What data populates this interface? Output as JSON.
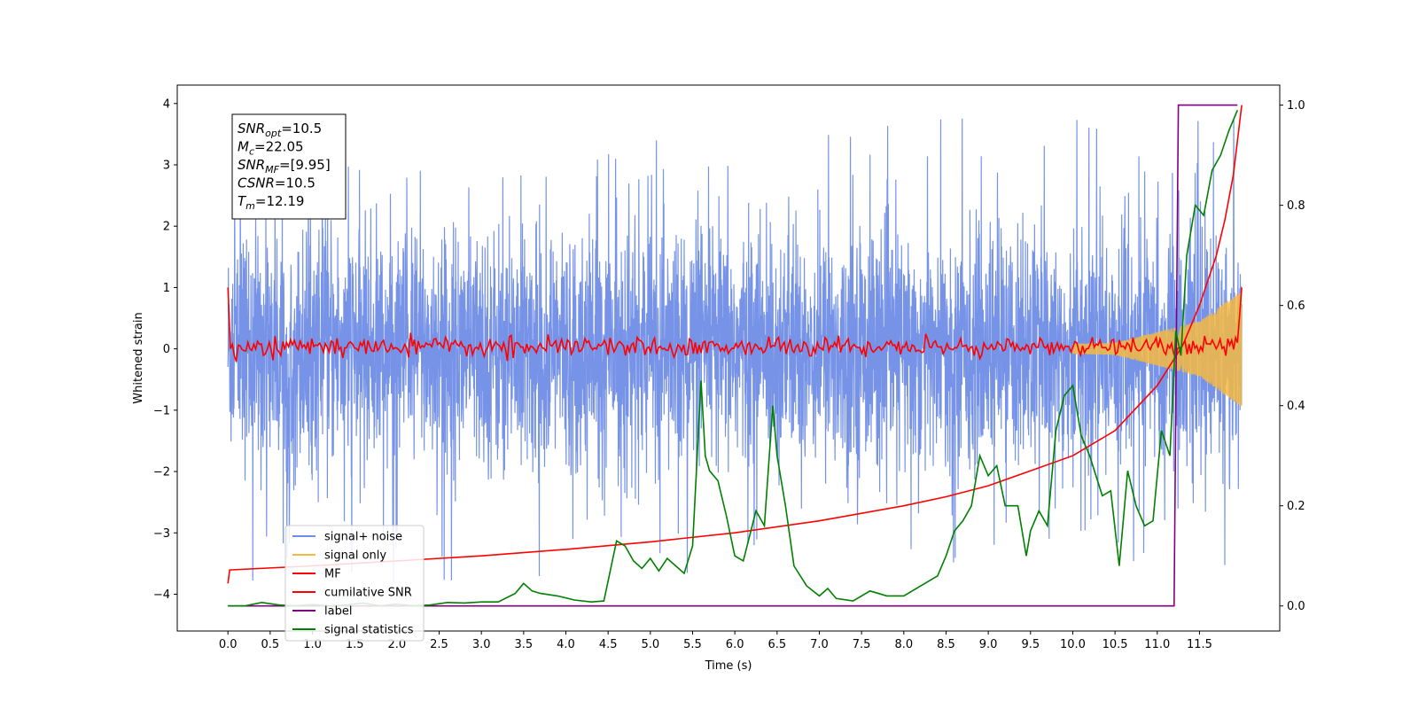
{
  "chart_data": {
    "type": "line",
    "xlabel": "Time (s)",
    "ylabel": "Whitened strain",
    "xlim": [
      -0.6,
      12.45
    ],
    "ylim": [
      -4.6,
      4.3
    ],
    "y2lim": [
      -0.05,
      1.04
    ],
    "xticks": [
      "0.0",
      "0.5",
      "1.0",
      "1.5",
      "2.0",
      "2.5",
      "3.0",
      "3.5",
      "4.0",
      "4.5",
      "5.0",
      "5.5",
      "6.0",
      "6.5",
      "7.0",
      "7.5",
      "8.0",
      "8.5",
      "9.0",
      "9.5",
      "10.0",
      "10.5",
      "11.0",
      "11.5"
    ],
    "yticks": [
      "4",
      "3",
      "2",
      "1",
      "0",
      "−1",
      "−2",
      "−3",
      "−4"
    ],
    "y2ticks": [
      "1.0",
      "0.8",
      "0.6",
      "0.4",
      "0.2",
      "0.0"
    ],
    "legend_placement": "lower-left",
    "annotation": {
      "lines": [
        {
          "base": "SNR",
          "sub": "opt",
          "rest": "=10.5"
        },
        {
          "base": "M",
          "sub": "c",
          "rest": "=22.05"
        },
        {
          "base": "SNR",
          "sub": "MF",
          "rest": "=[9.95]"
        },
        {
          "base": "CSNR",
          "sub": "",
          "rest": "=10.5"
        },
        {
          "base": "T",
          "sub": "m",
          "rest": "=12.19"
        }
      ]
    },
    "series": [
      {
        "name": "signal+ noise",
        "color": "#6f8de6",
        "axis": "left",
        "kind": "noise",
        "envelope": [
          -2.0,
          2.0
        ],
        "peaks_max": 3.9,
        "peaks_min": -4.0
      },
      {
        "name": "signal only",
        "color": "#f5b942",
        "axis": "left",
        "kind": "chirp",
        "x": [
          0.0,
          9.0,
          10.5,
          11.5,
          12.0
        ],
        "amplitude": [
          0.02,
          0.05,
          0.1,
          0.45,
          0.95
        ]
      },
      {
        "name": "MF",
        "color": "#ff0000",
        "axis": "left",
        "kind": "mf",
        "x": [
          0.0,
          0.03,
          0.1,
          11.95,
          12.0
        ],
        "y": [
          1.0,
          0.0,
          0.05,
          0.1,
          1.0
        ]
      },
      {
        "name": "cumilative SNR",
        "color": "#ff0000",
        "axis": "right",
        "kind": "line",
        "x": [
          0.0,
          0.02,
          1.0,
          2.0,
          3.0,
          4.0,
          5.0,
          6.0,
          7.0,
          7.5,
          8.0,
          8.5,
          9.0,
          9.5,
          10.0,
          10.5,
          11.0,
          11.3,
          11.5,
          11.7,
          11.8,
          11.9,
          12.0
        ],
        "y": [
          0.045,
          0.072,
          0.08,
          0.09,
          0.1,
          0.113,
          0.128,
          0.146,
          0.17,
          0.185,
          0.2,
          0.218,
          0.24,
          0.27,
          0.3,
          0.35,
          0.44,
          0.52,
          0.6,
          0.7,
          0.77,
          0.86,
          1.0
        ]
      },
      {
        "name": "label",
        "color": "#800080",
        "axis": "right",
        "kind": "line",
        "x": [
          0.0,
          11.2,
          11.25,
          11.95
        ],
        "y": [
          0.0,
          0.0,
          1.0,
          1.0
        ]
      },
      {
        "name": "signal statistics",
        "color": "#008000",
        "axis": "right",
        "kind": "line",
        "x": [
          0.0,
          0.2,
          0.4,
          0.6,
          0.8,
          1.0,
          1.2,
          1.4,
          1.6,
          1.8,
          2.0,
          2.2,
          2.4,
          2.6,
          2.8,
          3.0,
          3.2,
          3.4,
          3.5,
          3.6,
          3.7,
          3.9,
          4.1,
          4.3,
          4.45,
          4.6,
          4.7,
          4.8,
          4.9,
          5.0,
          5.1,
          5.2,
          5.3,
          5.4,
          5.5,
          5.6,
          5.65,
          5.7,
          5.8,
          5.9,
          6.0,
          6.1,
          6.25,
          6.35,
          6.45,
          6.5,
          6.6,
          6.7,
          6.85,
          7.0,
          7.1,
          7.2,
          7.4,
          7.6,
          7.8,
          8.0,
          8.2,
          8.4,
          8.5,
          8.6,
          8.7,
          8.8,
          8.9,
          9.0,
          9.1,
          9.2,
          9.35,
          9.45,
          9.5,
          9.6,
          9.7,
          9.8,
          9.9,
          10.0,
          10.1,
          10.2,
          10.35,
          10.45,
          10.55,
          10.65,
          10.75,
          10.85,
          10.95,
          11.05,
          11.15,
          11.22,
          11.28,
          11.35,
          11.45,
          11.55,
          11.65,
          11.75,
          11.85,
          11.95
        ],
        "y": [
          0.0,
          0.0,
          0.007,
          0.002,
          0.0,
          0.003,
          0.0,
          0.002,
          0.006,
          0.0,
          0.004,
          0.0,
          0.002,
          0.007,
          0.006,
          0.008,
          0.008,
          0.025,
          0.045,
          0.03,
          0.025,
          0.02,
          0.012,
          0.008,
          0.01,
          0.13,
          0.12,
          0.09,
          0.075,
          0.095,
          0.07,
          0.095,
          0.08,
          0.065,
          0.12,
          0.45,
          0.3,
          0.27,
          0.25,
          0.18,
          0.1,
          0.09,
          0.19,
          0.16,
          0.4,
          0.3,
          0.2,
          0.08,
          0.04,
          0.02,
          0.035,
          0.015,
          0.01,
          0.03,
          0.02,
          0.02,
          0.04,
          0.06,
          0.1,
          0.15,
          0.17,
          0.2,
          0.3,
          0.26,
          0.28,
          0.2,
          0.2,
          0.1,
          0.15,
          0.19,
          0.16,
          0.35,
          0.42,
          0.44,
          0.34,
          0.3,
          0.22,
          0.23,
          0.08,
          0.27,
          0.2,
          0.16,
          0.17,
          0.35,
          0.3,
          0.55,
          0.5,
          0.7,
          0.8,
          0.78,
          0.87,
          0.9,
          0.95,
          0.99
        ]
      }
    ]
  }
}
